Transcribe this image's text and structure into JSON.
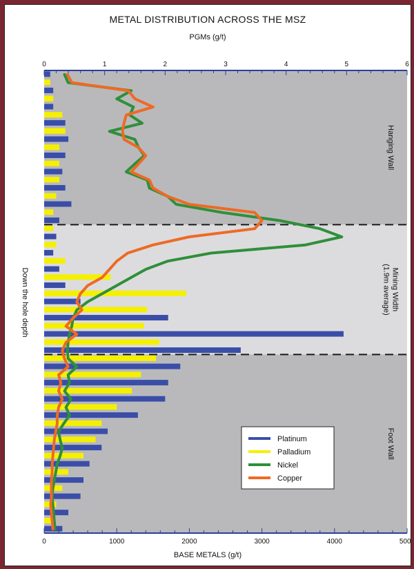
{
  "chart_data": {
    "type": "bar",
    "title": "METAL DISTRIBUTION ACROSS THE MSZ",
    "top_axis": {
      "label": "PGMs (g/t)",
      "ticks": [
        "0",
        "1",
        "2",
        "3",
        "4",
        "5",
        "6"
      ],
      "range": [
        0,
        6
      ]
    },
    "bottom_axis": {
      "label": "BASE METALS (g/t)",
      "ticks": [
        "0",
        "1000",
        "2000",
        "3000",
        "4000",
        "5000"
      ],
      "range": [
        0,
        5000
      ]
    },
    "ylabel": "Down the hole depth",
    "zones": [
      {
        "name": "Hanging Wall",
        "lines": [
          "Hanging Wall"
        ],
        "start": 0,
        "end": 19,
        "fill": "#b9b9bb"
      },
      {
        "name": "Mining Width",
        "lines": [
          "Mining Width",
          "(1.9m average)"
        ],
        "start": 19,
        "end": 35,
        "fill": "#dcdcde"
      },
      {
        "name": "Foot Wall",
        "lines": [
          "Foot Wall"
        ],
        "start": 35,
        "end": 57,
        "fill": "#b9b9bb"
      }
    ],
    "rows": 57,
    "series": [
      {
        "name": "Platinum",
        "kind": "bar",
        "axis": "top",
        "color": "#3a4ea8",
        "slot": 0,
        "rows": [
          0,
          2,
          4,
          6,
          8,
          10,
          12,
          14,
          16,
          18,
          20,
          22,
          24,
          26,
          28,
          30,
          32,
          34,
          36,
          38,
          40,
          42,
          44,
          46,
          48,
          50,
          52,
          54,
          56
        ],
        "values": [
          0.1,
          0.15,
          0.15,
          0.35,
          0.4,
          0.35,
          0.3,
          0.35,
          0.45,
          0.25,
          0.2,
          0.15,
          0.25,
          0.35,
          0.6,
          2.05,
          4.95,
          3.25,
          2.25,
          2.05,
          2.0,
          1.55,
          1.05,
          0.95,
          0.75,
          0.65,
          0.6,
          0.4,
          0.3
        ]
      },
      {
        "name": "Palladium",
        "kind": "bar",
        "axis": "top",
        "color": "#f5f000",
        "slot": 1,
        "rows": [
          1,
          3,
          5,
          7,
          9,
          11,
          13,
          15,
          17,
          19,
          21,
          23,
          25,
          27,
          29,
          31,
          33,
          35,
          37,
          39,
          41,
          43,
          45,
          47,
          49,
          51,
          53,
          55
        ],
        "values": [
          0.1,
          0.15,
          0.3,
          0.35,
          0.25,
          0.25,
          0.25,
          0.2,
          0.15,
          0.15,
          0.2,
          0.35,
          1.1,
          2.35,
          1.7,
          1.65,
          1.9,
          1.85,
          1.6,
          1.45,
          1.2,
          0.95,
          0.85,
          0.65,
          0.4,
          0.3,
          0.2,
          0.15
        ]
      },
      {
        "name": "Nickel",
        "kind": "line",
        "axis": "bottom",
        "color": "#2f8f3a",
        "rows": [
          0,
          1,
          2,
          3,
          4,
          5,
          6,
          7,
          8,
          9,
          10,
          11,
          12,
          13,
          14,
          15,
          16,
          17,
          18,
          19,
          20,
          21,
          22,
          23,
          24,
          25,
          26,
          27,
          28,
          29,
          30,
          31,
          32,
          33,
          34,
          35,
          36,
          37,
          38,
          39,
          40,
          41,
          42,
          43,
          44,
          45,
          46,
          47,
          48,
          49,
          50,
          51,
          52,
          53,
          54,
          55,
          56
        ],
        "values": [
          280,
          330,
          1200,
          1000,
          1230,
          1180,
          1350,
          900,
          1250,
          1300,
          1380,
          1250,
          1130,
          1420,
          1450,
          1700,
          1820,
          2450,
          3250,
          3800,
          4100,
          3600,
          2300,
          1700,
          1400,
          1200,
          1000,
          800,
          600,
          450,
          400,
          380,
          350,
          330,
          320,
          330,
          450,
          330,
          350,
          280,
          370,
          300,
          350,
          270,
          200,
          220,
          250,
          220,
          180,
          160,
          140,
          120,
          110,
          120,
          130,
          140,
          150
        ]
      },
      {
        "name": "Copper",
        "kind": "line",
        "axis": "bottom",
        "color": "#ee6a24",
        "rows": [
          0,
          1,
          2,
          3,
          4,
          5,
          6,
          7,
          8,
          9,
          10,
          11,
          12,
          13,
          14,
          15,
          16,
          17,
          18,
          19,
          20,
          21,
          22,
          23,
          24,
          25,
          26,
          27,
          28,
          29,
          30,
          31,
          32,
          33,
          34,
          35,
          36,
          37,
          38,
          39,
          40,
          41,
          42,
          43,
          44,
          45,
          46,
          47,
          48,
          49,
          50,
          51,
          52,
          53,
          54,
          55,
          56
        ],
        "values": [
          320,
          380,
          1160,
          1250,
          1500,
          1130,
          1100,
          1080,
          1100,
          1300,
          1400,
          1300,
          1200,
          1450,
          1500,
          1700,
          2000,
          2900,
          3000,
          2900,
          2000,
          1500,
          1150,
          1000,
          900,
          800,
          600,
          500,
          450,
          520,
          400,
          300,
          450,
          300,
          250,
          280,
          330,
          200,
          230,
          200,
          250,
          200,
          180,
          180,
          160,
          140,
          130,
          120,
          110,
          110,
          100,
          100,
          100,
          90,
          100,
          110,
          120
        ]
      }
    ],
    "legend": {
      "placement": "bottom-right",
      "entries": [
        "Platinum",
        "Palladium",
        "Nickel",
        "Copper"
      ]
    },
    "grid": false
  }
}
